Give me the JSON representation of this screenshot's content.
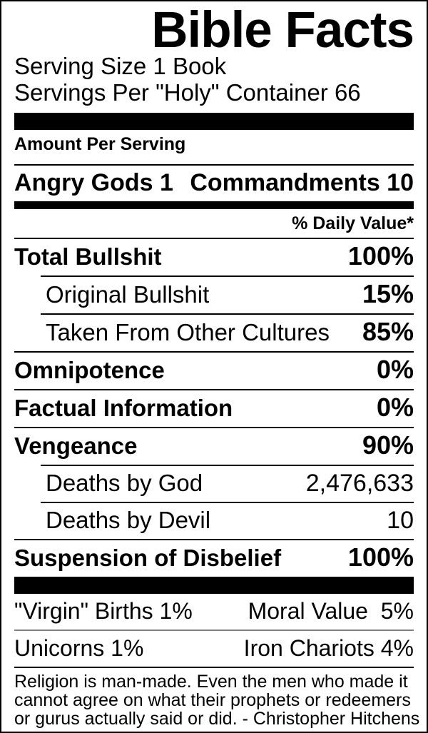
{
  "label": {
    "title": "Bible Facts",
    "serving_size": "Serving Size 1 Book",
    "servings_per_container": "Servings Per \"Holy\" Container 66",
    "amount_per_serving": "Amount Per Serving",
    "headline": {
      "left": "Angry Gods 1",
      "right": "Commandments 10"
    },
    "daily_value_header": "% Daily Value*",
    "rows": [
      {
        "name": "Total Bullshit",
        "value": "100%"
      },
      {
        "name": "Original Bullshit",
        "value": "15%"
      },
      {
        "name": "Taken From Other Cultures",
        "value": "85%"
      },
      {
        "name": "Omnipotence",
        "value": "0%"
      },
      {
        "name": "Factual Information",
        "value": "0%"
      },
      {
        "name": "Vengeance",
        "value": "90%"
      },
      {
        "name": "Deaths by God",
        "value": "2,476,633"
      },
      {
        "name": "Deaths by Devil",
        "value": "10"
      },
      {
        "name": "Suspension of Disbelief",
        "value": "100%"
      }
    ],
    "footer_rows": [
      {
        "left": "\"Virgin\" Births 1%",
        "right": "Moral Value  5%"
      },
      {
        "left": "Unicorns 1%",
        "right": "Iron Chariots 4%"
      }
    ],
    "quote_lines": [
      "Religion is man-made. Even the men who made it",
      "cannot agree on what their prophets or redeemers",
      "or gurus actually said or did. - Christopher Hitchens"
    ]
  },
  "colors": {
    "ink": "#000000",
    "paper": "#ffffff",
    "gray_rule": "#808080"
  }
}
